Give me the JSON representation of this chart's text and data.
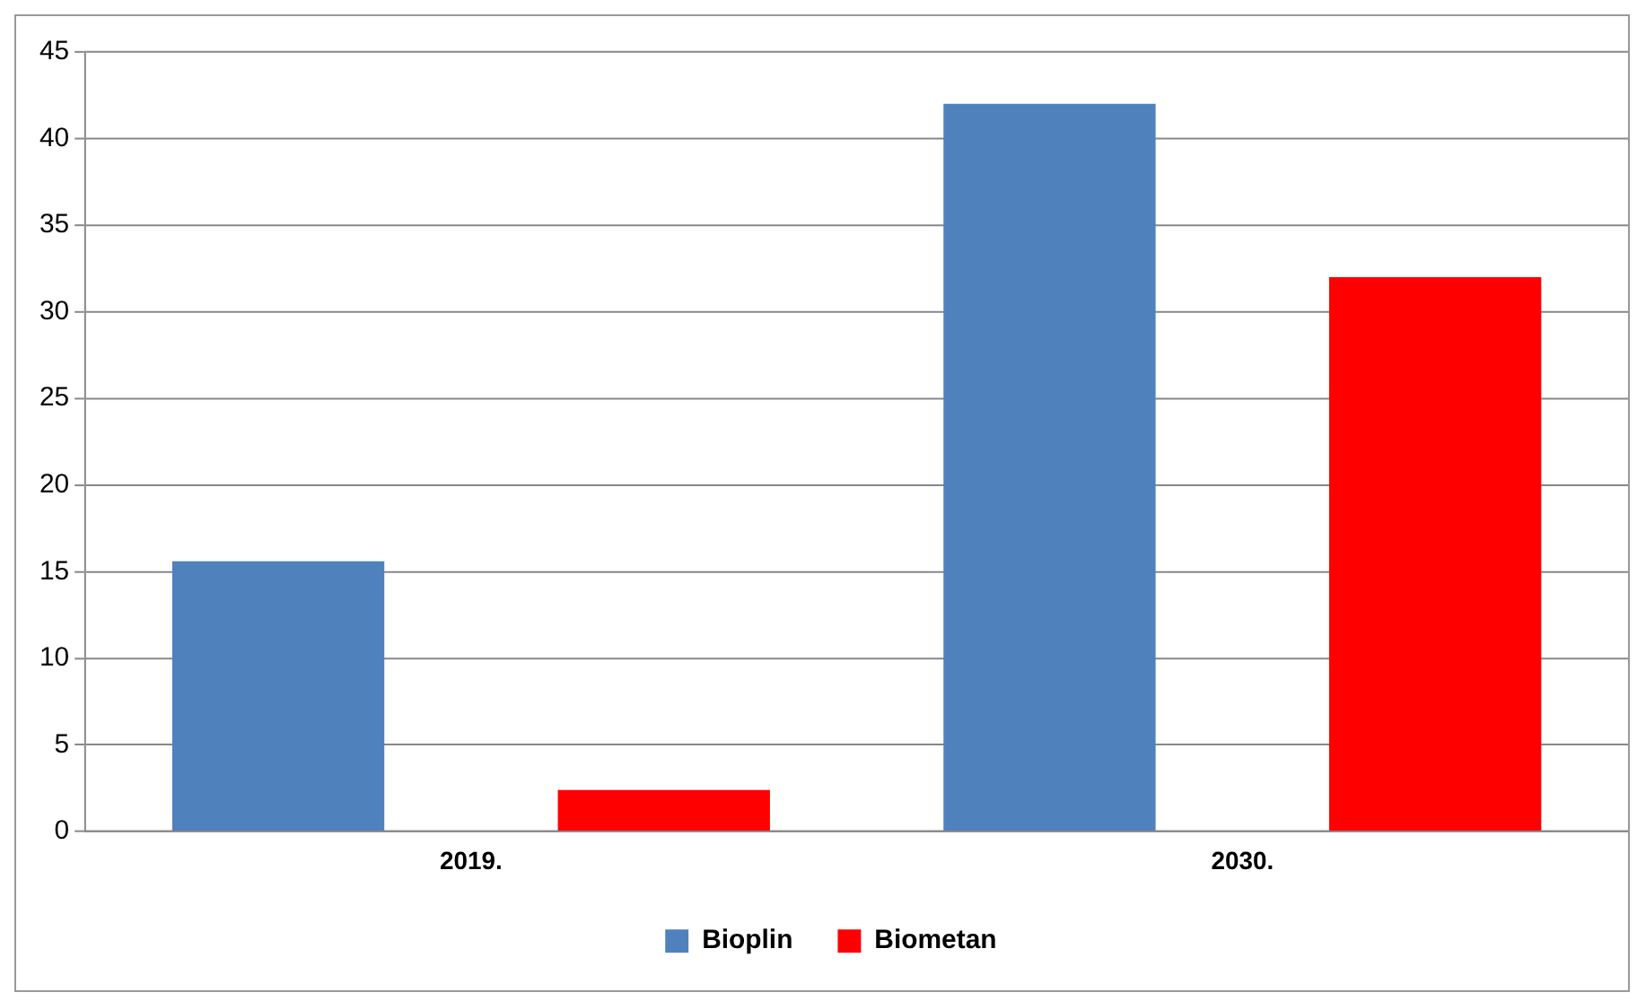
{
  "chart_data": {
    "type": "bar",
    "categories": [
      "2019.",
      "2030."
    ],
    "series": [
      {
        "name": "Bioplin",
        "color": "#4f81bd",
        "values": [
          15.6,
          42
        ]
      },
      {
        "name": "Biometan",
        "color": "#ff0000",
        "values": [
          2.4,
          32
        ]
      }
    ],
    "ylim": [
      0,
      45
    ],
    "yticks": [
      0,
      5,
      10,
      15,
      20,
      25,
      30,
      35,
      40,
      45
    ],
    "grid": "y",
    "legend": "bottom"
  }
}
